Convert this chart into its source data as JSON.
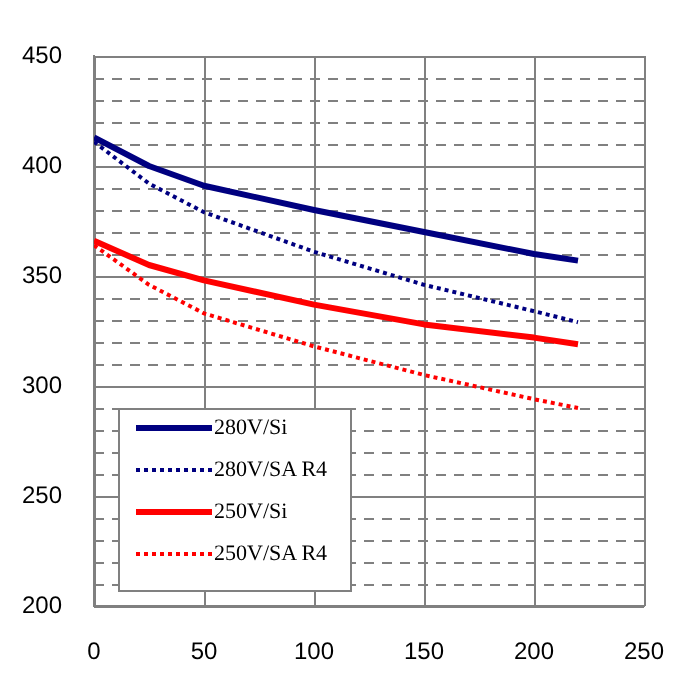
{
  "chart_data": {
    "type": "line",
    "xlim": [
      0,
      250
    ],
    "xticks": [
      0,
      50,
      100,
      150,
      200,
      250
    ],
    "ylim": [
      200,
      450
    ],
    "yticks": [
      200,
      {
        "value": 210,
        "label": null
      },
      {
        "value": 220,
        "label": null
      },
      {
        "value": 230,
        "label": null
      },
      {
        "value": 240,
        "label": null
      },
      250,
      {
        "value": 260,
        "label": null
      },
      {
        "value": 270,
        "label": null
      },
      {
        "value": 280,
        "label": null
      },
      {
        "value": 290,
        "label": null
      },
      300,
      {
        "value": 310,
        "label": null
      },
      {
        "value": 320,
        "label": null
      },
      {
        "value": 330,
        "label": null
      },
      {
        "value": 340,
        "label": null
      },
      350,
      {
        "value": 360,
        "label": null
      },
      {
        "value": 370,
        "label": null
      },
      {
        "value": 380,
        "label": null
      },
      {
        "value": 390,
        "label": null
      },
      400,
      {
        "value": 410,
        "label": null
      },
      {
        "value": 420,
        "label": null
      },
      {
        "value": 430,
        "label": null
      },
      {
        "value": 440,
        "label": null
      },
      450
    ],
    "x": [
      0,
      25,
      50,
      100,
      150,
      200,
      220
    ],
    "grid": true,
    "legend": "bottom left",
    "marker": "none",
    "series": [
      {
        "name": "280V/Si",
        "color": "#000080",
        "line_style": "solid",
        "values": [
          413,
          400,
          391,
          380,
          370,
          360,
          357
        ]
      },
      {
        "name": "280V/SA R4",
        "color": "#000080",
        "line_style": "dotted",
        "values": [
          411,
          392,
          379,
          361,
          346,
          334,
          329
        ]
      },
      {
        "name": "250V/Si",
        "color": "#ff0000",
        "line_style": "solid",
        "values": [
          366,
          355,
          348,
          337,
          328,
          322,
          319
        ]
      },
      {
        "name": "250V/SA R4",
        "color": "#ff0000",
        "line_style": "dotted",
        "values": [
          364,
          346,
          333,
          318,
          305,
          294,
          290
        ]
      }
    ]
  }
}
